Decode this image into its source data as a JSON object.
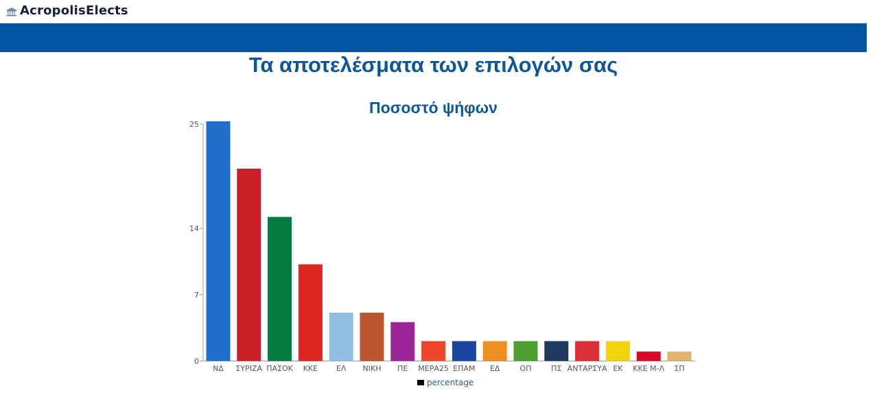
{
  "brand": {
    "name": "AcropolisElects",
    "icon": "acropolis-icon"
  },
  "page": {
    "title": "Τα αποτελέσματα των επιλογών σας"
  },
  "chart_data": {
    "type": "bar",
    "title": "Ποσοστό ψήφων",
    "categories": [
      "ΝΔ",
      "ΣΥΡΙΖΑ",
      "ΠΑΣΟΚ",
      "ΚΚΕ",
      "ΕΛ",
      "ΝΙΚΗ",
      "ΠΕ",
      "ΜΕΡΑ25",
      "ΕΠΑΜ",
      "ΕΔ",
      "ΟΠ",
      "ΠΣ",
      "ΑΝΤΑΡΣΥΑ",
      "ΕΚ",
      "ΚΚΕ Μ-Λ",
      "ΣΠ"
    ],
    "series": [
      {
        "name": "percentage",
        "values": [
          25.3,
          20.3,
          15.2,
          10.2,
          5.1,
          5.1,
          4.1,
          2.1,
          2.1,
          2.1,
          2.1,
          2.1,
          2.1,
          2.1,
          1.0,
          1.0
        ]
      }
    ],
    "colors": [
      "#1e6fcb",
      "#cb1f27",
      "#037b3e",
      "#df2621",
      "#8fbfe4",
      "#bb5630",
      "#9c2698",
      "#ed462c",
      "#19469e",
      "#ee8f22",
      "#4fa032",
      "#1e3a60",
      "#dc3038",
      "#f2d40c",
      "#d5082a",
      "#e3b26c"
    ],
    "yticks": [
      0,
      7,
      14,
      25
    ],
    "ylim": [
      0,
      25
    ],
    "legend": "bottom",
    "legend_marker_color": "#000000",
    "grid": false
  }
}
